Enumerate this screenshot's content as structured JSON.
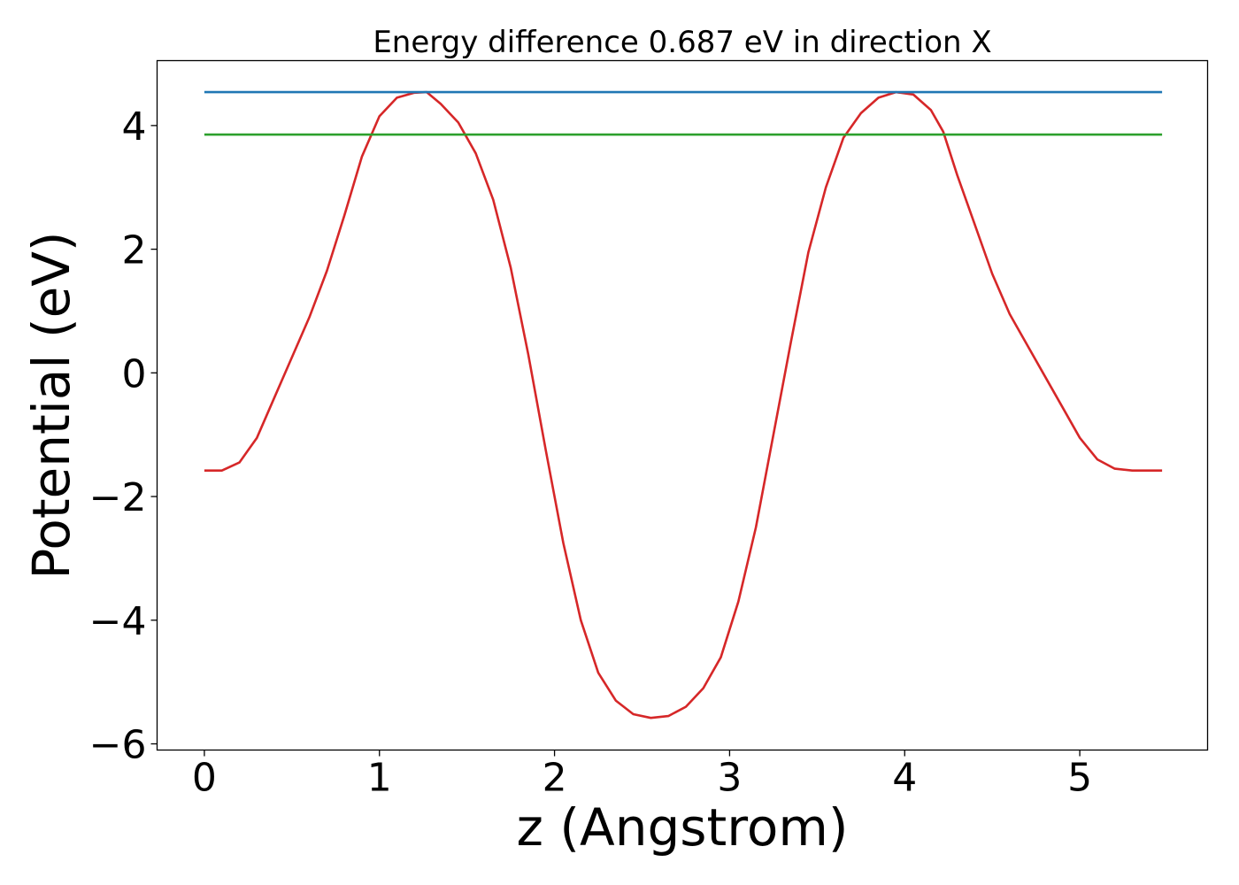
{
  "chart_data": {
    "type": "line",
    "title": "Energy difference 0.687 eV in direction X",
    "xlabel": "z (Angstrom)",
    "ylabel": "Potential (eV)",
    "xlim": [
      -0.27,
      5.73
    ],
    "ylim": [
      -6.1,
      5.05
    ],
    "grid": false,
    "x_ticks": [
      0,
      1,
      2,
      3,
      4,
      5
    ],
    "x_tick_labels": [
      "0",
      "1",
      "2",
      "3",
      "4",
      "5"
    ],
    "y_ticks": [
      -6,
      -4,
      -2,
      0,
      2,
      4
    ],
    "y_tick_labels": [
      "−6",
      "−4",
      "−2",
      "0",
      "2",
      "4"
    ],
    "series": [
      {
        "color": "#d62728",
        "x": [
          0.0,
          0.1,
          0.2,
          0.3,
          0.4,
          0.5,
          0.6,
          0.7,
          0.8,
          0.9,
          1.0,
          1.1,
          1.2,
          1.27,
          1.35,
          1.45,
          1.55,
          1.65,
          1.75,
          1.85,
          1.95,
          2.05,
          2.15,
          2.25,
          2.35,
          2.45,
          2.55,
          2.65,
          2.75,
          2.85,
          2.95,
          3.05,
          3.15,
          3.25,
          3.35,
          3.45,
          3.55,
          3.65,
          3.75,
          3.85,
          3.95,
          4.05,
          4.15,
          4.22,
          4.3,
          4.4,
          4.5,
          4.6,
          4.7,
          4.8,
          4.9,
          5.0,
          5.1,
          5.2,
          5.3,
          5.4,
          5.47
        ],
        "y": [
          -1.58,
          -1.58,
          -1.45,
          -1.05,
          -0.4,
          0.25,
          0.9,
          1.65,
          2.55,
          3.5,
          4.15,
          4.45,
          4.53,
          4.54,
          4.35,
          4.05,
          3.55,
          2.8,
          1.7,
          0.3,
          -1.25,
          -2.75,
          -4.0,
          -4.85,
          -5.3,
          -5.52,
          -5.58,
          -5.55,
          -5.4,
          -5.1,
          -4.6,
          -3.7,
          -2.5,
          -1.0,
          0.5,
          1.95,
          3.0,
          3.8,
          4.2,
          4.45,
          4.54,
          4.5,
          4.25,
          3.9,
          3.2,
          2.4,
          1.6,
          0.95,
          0.45,
          -0.05,
          -0.55,
          -1.05,
          -1.4,
          -1.55,
          -1.58,
          -1.58,
          -1.58
        ]
      },
      {
        "color": "#1f77b4",
        "x": [
          0.0,
          5.47
        ],
        "y": [
          4.54,
          4.54
        ]
      },
      {
        "color": "#2ca02c",
        "x": [
          0.0,
          5.47
        ],
        "y": [
          3.853,
          3.853
        ]
      }
    ]
  }
}
